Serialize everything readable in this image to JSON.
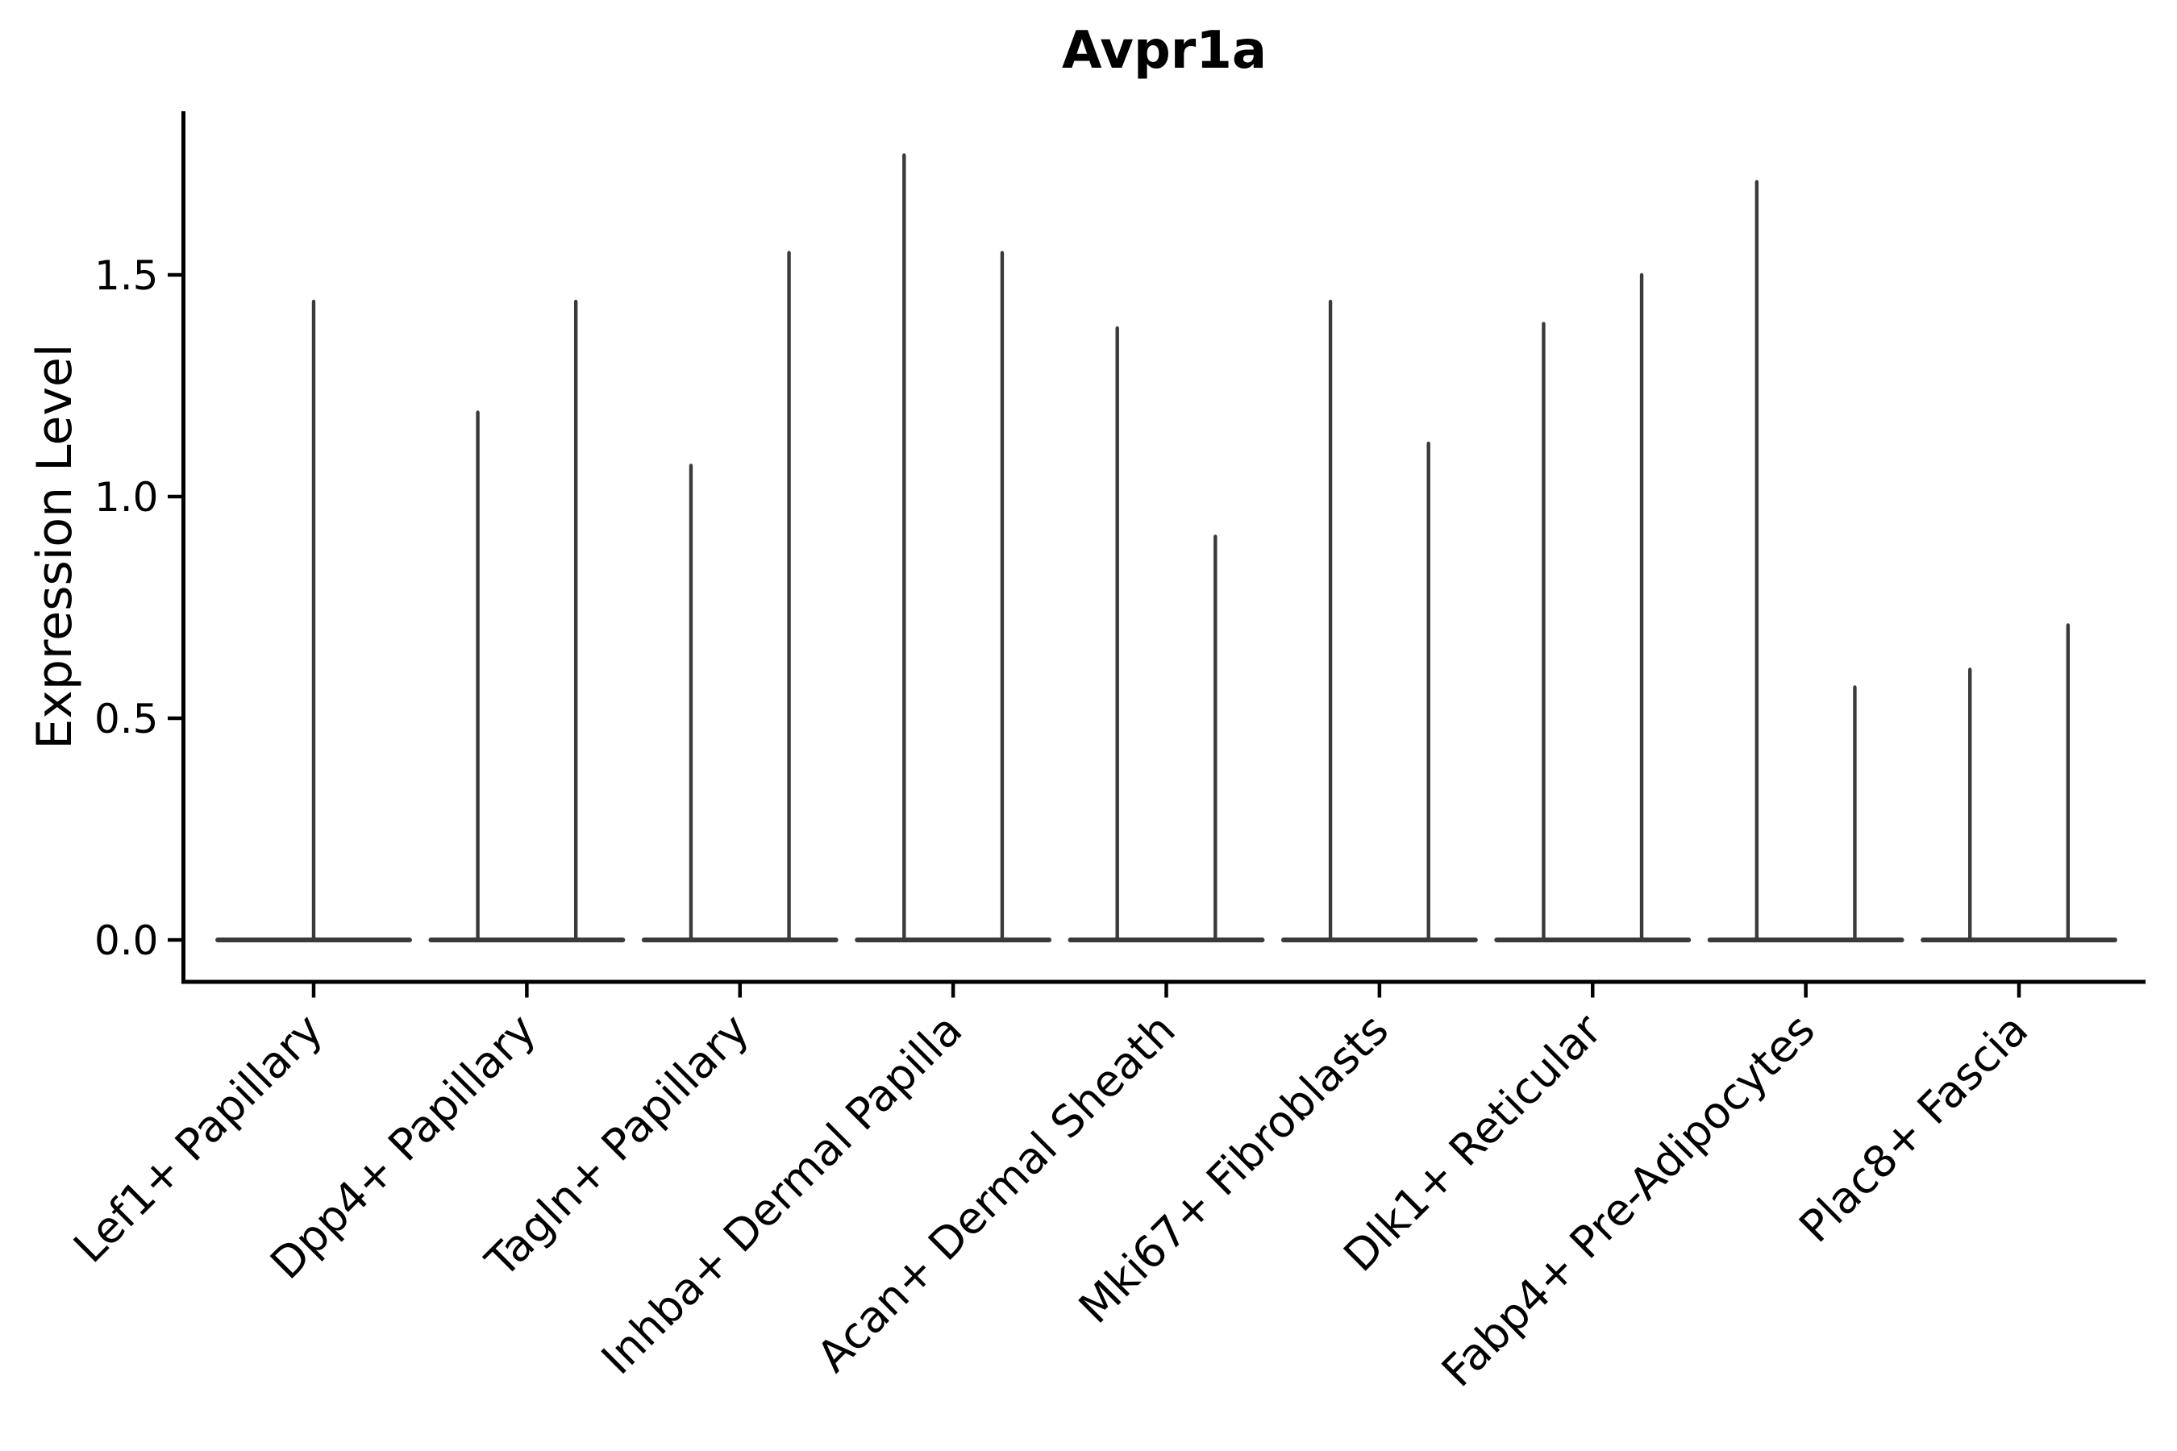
{
  "figure": {
    "background": "#ffffff"
  },
  "colors": {
    "violin": "#3a3a3a",
    "axis": "#000000",
    "text": "#000000"
  },
  "chart_data": {
    "type": "violin",
    "title": "Avpr1a",
    "ylabel": "Expression Level",
    "xlabel": "",
    "grid": false,
    "legend_position": "none",
    "ylim": [
      -0.09,
      1.87
    ],
    "yticks": [
      {
        "value": 0.0,
        "label": "0.0"
      },
      {
        "value": 0.5,
        "label": "0.5"
      },
      {
        "value": 1.0,
        "label": "1.0"
      },
      {
        "value": 1.5,
        "label": "1.5"
      }
    ],
    "categories": [
      "Lef1+ Papillary",
      "Dpp4+ Papillary",
      "Tagln+ Papillary",
      "Inhba+ Dermal Papilla",
      "Acan+ Dermal Sheath",
      "Mki67+ Fibroblasts",
      "Dlk1+ Reticular",
      "Fabp4+ Pre-Adipocytes",
      "Plac8+ Fascia"
    ],
    "x_tick_rotation_deg": 45,
    "baseline_value": 0.0,
    "base_half_width_frac": 0.465,
    "violins": [
      {
        "category": "Lef1+ Papillary",
        "spikes": [
          {
            "x_offset": 0.0,
            "max": 1.44
          }
        ]
      },
      {
        "category": "Dpp4+ Papillary",
        "spikes": [
          {
            "x_offset": -0.23,
            "max": 1.19
          },
          {
            "x_offset": 0.23,
            "max": 1.44
          }
        ]
      },
      {
        "category": "Tagln+ Papillary",
        "spikes": [
          {
            "x_offset": -0.23,
            "max": 1.07
          },
          {
            "x_offset": 0.23,
            "max": 1.55
          }
        ]
      },
      {
        "category": "Inhba+ Dermal Papilla",
        "spikes": [
          {
            "x_offset": -0.23,
            "max": 1.77
          },
          {
            "x_offset": 0.23,
            "max": 1.55
          }
        ]
      },
      {
        "category": "Acan+ Dermal Sheath",
        "spikes": [
          {
            "x_offset": -0.23,
            "max": 1.38
          },
          {
            "x_offset": 0.23,
            "max": 0.91
          }
        ]
      },
      {
        "category": "Mki67+ Fibroblasts",
        "spikes": [
          {
            "x_offset": -0.23,
            "max": 1.44
          },
          {
            "x_offset": 0.23,
            "max": 1.12
          }
        ]
      },
      {
        "category": "Dlk1+ Reticular",
        "spikes": [
          {
            "x_offset": -0.23,
            "max": 1.39
          },
          {
            "x_offset": 0.23,
            "max": 1.5
          }
        ]
      },
      {
        "category": "Fabp4+ Pre-Adipocytes",
        "spikes": [
          {
            "x_offset": -0.23,
            "max": 1.71
          },
          {
            "x_offset": 0.23,
            "max": 0.57
          }
        ]
      },
      {
        "category": "Plac8+ Fascia",
        "spikes": [
          {
            "x_offset": -0.23,
            "max": 0.61
          },
          {
            "x_offset": 0.23,
            "max": 0.71
          }
        ]
      }
    ]
  }
}
